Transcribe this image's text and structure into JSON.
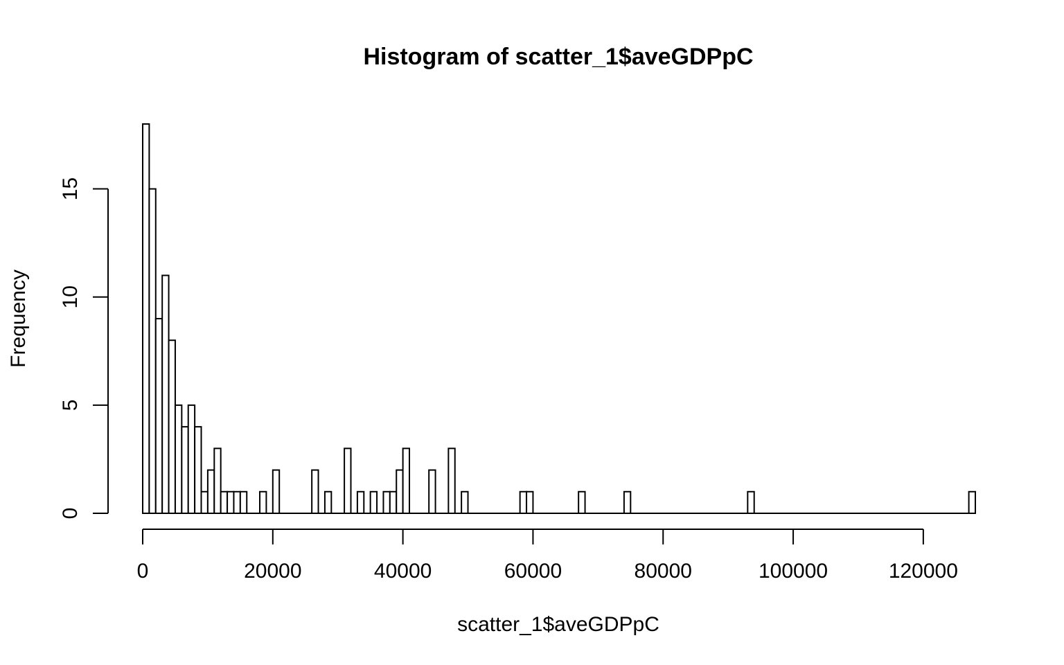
{
  "chart_data": {
    "type": "bar",
    "title": "Histogram of scatter_1$aveGDPpC",
    "xlabel": "scatter_1$aveGDPpC",
    "ylabel": "Frequency",
    "bin_width": 1000,
    "bin_start": 0,
    "counts": [
      18,
      15,
      9,
      11,
      8,
      5,
      4,
      5,
      4,
      1,
      2,
      3,
      1,
      1,
      1,
      1,
      0,
      0,
      1,
      0,
      2,
      0,
      0,
      0,
      0,
      0,
      2,
      0,
      1,
      0,
      0,
      3,
      0,
      1,
      0,
      1,
      0,
      1,
      1,
      2,
      3,
      0,
      0,
      0,
      2,
      0,
      0,
      3,
      0,
      1,
      0,
      0,
      0,
      0,
      0,
      0,
      0,
      0,
      1,
      1,
      0,
      0,
      0,
      0,
      0,
      0,
      0,
      1,
      0,
      0,
      0,
      0,
      0,
      0,
      1,
      0,
      0,
      0,
      0,
      0,
      0,
      0,
      0,
      0,
      0,
      0,
      0,
      0,
      0,
      0,
      0,
      0,
      0,
      1,
      0,
      0,
      0,
      0,
      0,
      0,
      0,
      0,
      0,
      0,
      0,
      0,
      0,
      0,
      0,
      0,
      0,
      0,
      0,
      0,
      0,
      0,
      0,
      0,
      0,
      0,
      0,
      0,
      0,
      0,
      0,
      0,
      0,
      1
    ],
    "xlim": [
      0,
      128000
    ],
    "ylim": [
      0,
      18
    ],
    "x_axis_ticks": [
      0,
      20000,
      40000,
      60000,
      80000,
      100000,
      120000
    ],
    "x_tick_labels": [
      "0",
      "20000",
      "40000",
      "60000",
      "80000",
      "100000",
      "120000"
    ],
    "y_axis_ticks": [
      0,
      5,
      10,
      15
    ],
    "y_tick_labels": [
      "0",
      "5",
      "10",
      "15"
    ],
    "grid": false
  }
}
